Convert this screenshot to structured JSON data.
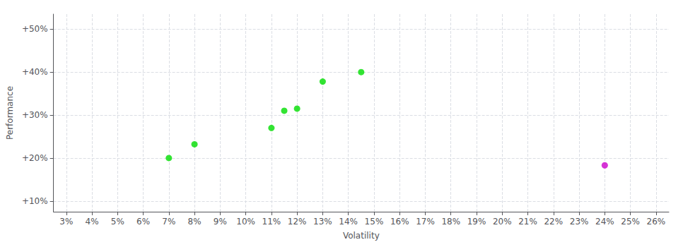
{
  "chart_data": {
    "type": "scatter",
    "xlabel": "Volatility",
    "ylabel": "Performance",
    "series": [
      {
        "color": "#00dd00",
        "marker": "circle",
        "x": [
          0.07,
          0.08,
          0.11,
          0.115,
          0.12,
          0.13,
          0.145
        ],
        "values": [
          0.2,
          0.232,
          0.27,
          0.31,
          0.315,
          0.378,
          0.4
        ]
      },
      {
        "color": "#cc00cc",
        "marker": "circle",
        "x": [
          0.24
        ],
        "values": [
          0.183
        ]
      }
    ],
    "xlim": [
      0.025,
      0.265
    ],
    "ylim": [
      0.075,
      0.535
    ],
    "xticks": [
      {
        "value": 0.03,
        "label": "3%"
      },
      {
        "value": 0.04,
        "label": "4%"
      },
      {
        "value": 0.05,
        "label": "5%"
      },
      {
        "value": 0.06,
        "label": "6%"
      },
      {
        "value": 0.07,
        "label": "7%"
      },
      {
        "value": 0.08,
        "label": "8%"
      },
      {
        "value": 0.09,
        "label": "9%"
      },
      {
        "value": 0.1,
        "label": "10%"
      },
      {
        "value": 0.11,
        "label": "11%"
      },
      {
        "value": 0.12,
        "label": "12%"
      },
      {
        "value": 0.13,
        "label": "13%"
      },
      {
        "value": 0.14,
        "label": "14%"
      },
      {
        "value": 0.15,
        "label": "15%"
      },
      {
        "value": 0.16,
        "label": "16%"
      },
      {
        "value": 0.17,
        "label": "17%"
      },
      {
        "value": 0.18,
        "label": "18%"
      },
      {
        "value": 0.19,
        "label": "19%"
      },
      {
        "value": 0.2,
        "label": "20%"
      },
      {
        "value": 0.21,
        "label": "21%"
      },
      {
        "value": 0.22,
        "label": "22%"
      },
      {
        "value": 0.23,
        "label": "23%"
      },
      {
        "value": 0.24,
        "label": "24%"
      },
      {
        "value": 0.25,
        "label": "25%"
      },
      {
        "value": 0.26,
        "label": "26%"
      }
    ],
    "yticks": [
      {
        "value": 0.1,
        "label": "+10%"
      },
      {
        "value": 0.2,
        "label": "+20%"
      },
      {
        "value": 0.3,
        "label": "+30%"
      },
      {
        "value": 0.4,
        "label": "+40%"
      },
      {
        "value": 0.5,
        "label": "+50%"
      }
    ],
    "grid": true
  }
}
